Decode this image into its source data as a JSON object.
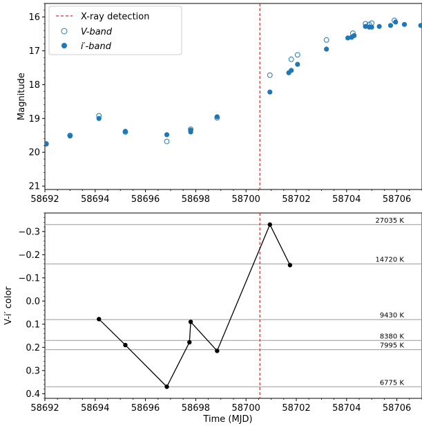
{
  "chart_data": [
    {
      "type": "scatter",
      "ylabel": "Magnitude",
      "xlim": [
        58692,
        58707
      ],
      "ylim": [
        21.1,
        15.6
      ],
      "x_ticks": [
        58692,
        58694,
        58696,
        58698,
        58700,
        58702,
        58704,
        58706
      ],
      "y_ticks": [
        16,
        17,
        18,
        19,
        20,
        21
      ],
      "vline": {
        "x": 58700.55,
        "label": "X-ray detection",
        "color": "#d62728"
      },
      "legend": [
        "X-ray detection",
        "V-band",
        "i′-band"
      ],
      "legend_placement": "top-left",
      "series": [
        {
          "name": "V-band",
          "marker": "open-circle",
          "color": "#1f77b4",
          "x": [
            58692.05,
            58693.0,
            58694.15,
            58695.2,
            58696.85,
            58697.8,
            58698.85,
            58700.95,
            58701.8,
            58702.05,
            58703.2,
            58704.25,
            58704.75,
            58704.9,
            58705.0,
            58705.9
          ],
          "y": [
            19.75,
            19.5,
            18.92,
            19.4,
            19.68,
            19.32,
            18.98,
            17.72,
            17.25,
            17.12,
            16.68,
            16.48,
            16.2,
            16.22,
            16.18,
            16.1
          ]
        },
        {
          "name": "i′-band",
          "marker": "filled-circle",
          "color": "#1f77b4",
          "x": [
            58692.05,
            58693.0,
            58694.15,
            58695.2,
            58696.85,
            58697.8,
            58697.8,
            58698.85,
            58700.95,
            58701.7,
            58701.8,
            58702.05,
            58703.2,
            58704.05,
            58704.2,
            58704.3,
            58704.75,
            58704.9,
            58705.0,
            58705.3,
            58705.75,
            58705.95,
            58706.3,
            58706.95
          ],
          "y": [
            19.75,
            19.52,
            19.0,
            19.38,
            19.48,
            19.35,
            19.4,
            18.95,
            18.22,
            17.65,
            17.58,
            17.4,
            16.95,
            16.62,
            16.6,
            16.55,
            16.28,
            16.3,
            16.3,
            16.28,
            16.25,
            16.15,
            16.22,
            16.25
          ]
        }
      ]
    },
    {
      "type": "line",
      "xlabel": "Time (MJD)",
      "ylabel": "V-i′ color",
      "xlim": [
        58692,
        58707
      ],
      "ylim": [
        0.42,
        -0.38
      ],
      "x_ticks": [
        58692,
        58694,
        58696,
        58698,
        58700,
        58702,
        58704,
        58706
      ],
      "y_ticks": [
        -0.3,
        -0.2,
        -0.1,
        0.0,
        0.1,
        0.2,
        0.3,
        0.4
      ],
      "vline": {
        "x": 58700.55,
        "color": "#d62728"
      },
      "series": [
        {
          "color": "#000000",
          "x": [
            58694.15,
            58695.2,
            58696.85,
            58697.75,
            58697.8,
            58698.85,
            58700.95,
            58701.75
          ],
          "y": [
            0.078,
            0.19,
            0.37,
            0.178,
            0.09,
            0.215,
            -0.33,
            -0.155
          ]
        }
      ],
      "temperature_lines": [
        {
          "y": -0.33,
          "label": "27035 K"
        },
        {
          "y": -0.16,
          "label": "14720 K"
        },
        {
          "y": 0.08,
          "label": "9430 K"
        },
        {
          "y": 0.17,
          "label": "8380 K"
        },
        {
          "y": 0.21,
          "label": "7995 K"
        },
        {
          "y": 0.37,
          "label": "6775 K"
        }
      ]
    }
  ]
}
